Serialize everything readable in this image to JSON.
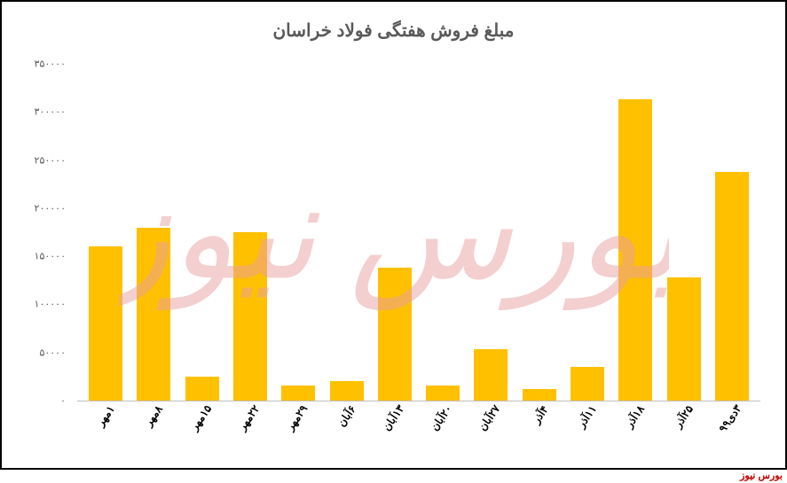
{
  "chart": {
    "type": "bar",
    "title": "مبلغ فروش هفتگی فولاد خراسان",
    "title_fontsize": 20,
    "title_color": "#595959",
    "background_color": "#ffffff",
    "border_color": "#000000",
    "categories": [
      "۱مهر",
      "۸مهر",
      "۱۵مهر",
      "۲۲مهر",
      "۲۹مهر",
      "۶آبان",
      "۱۳آبان",
      "۲۰آبان",
      "۲۷آبان",
      "۴آذر",
      "۱۱آذر",
      "۱۸آذر",
      "۲۵آذر",
      "۳دی۹۹"
    ],
    "values": [
      160000,
      180000,
      25000,
      175000,
      16000,
      20000,
      138000,
      16000,
      53000,
      12000,
      35000,
      313000,
      128000,
      238000
    ],
    "bar_color": "#ffc000",
    "ylim": [
      0,
      350000
    ],
    "ytick_step": 50000,
    "yticks": [
      "۰",
      "۵۰۰۰۰",
      "۱۰۰۰۰۰",
      "۱۵۰۰۰۰",
      "۲۰۰۰۰۰",
      "۲۵۰۰۰۰",
      "۳۰۰۰۰۰",
      "۳۵۰۰۰۰"
    ],
    "axis_label_color": "#595959",
    "x_label_color": "#000000",
    "x_label_fontsize": 12,
    "y_label_fontsize": 11,
    "baseline_color": "#bfbfbf",
    "watermark_text": "بورس نیوز",
    "watermark_color": "#e8a0a3",
    "footer_text": "بورس نیوز",
    "footer_color": "#c00000"
  }
}
